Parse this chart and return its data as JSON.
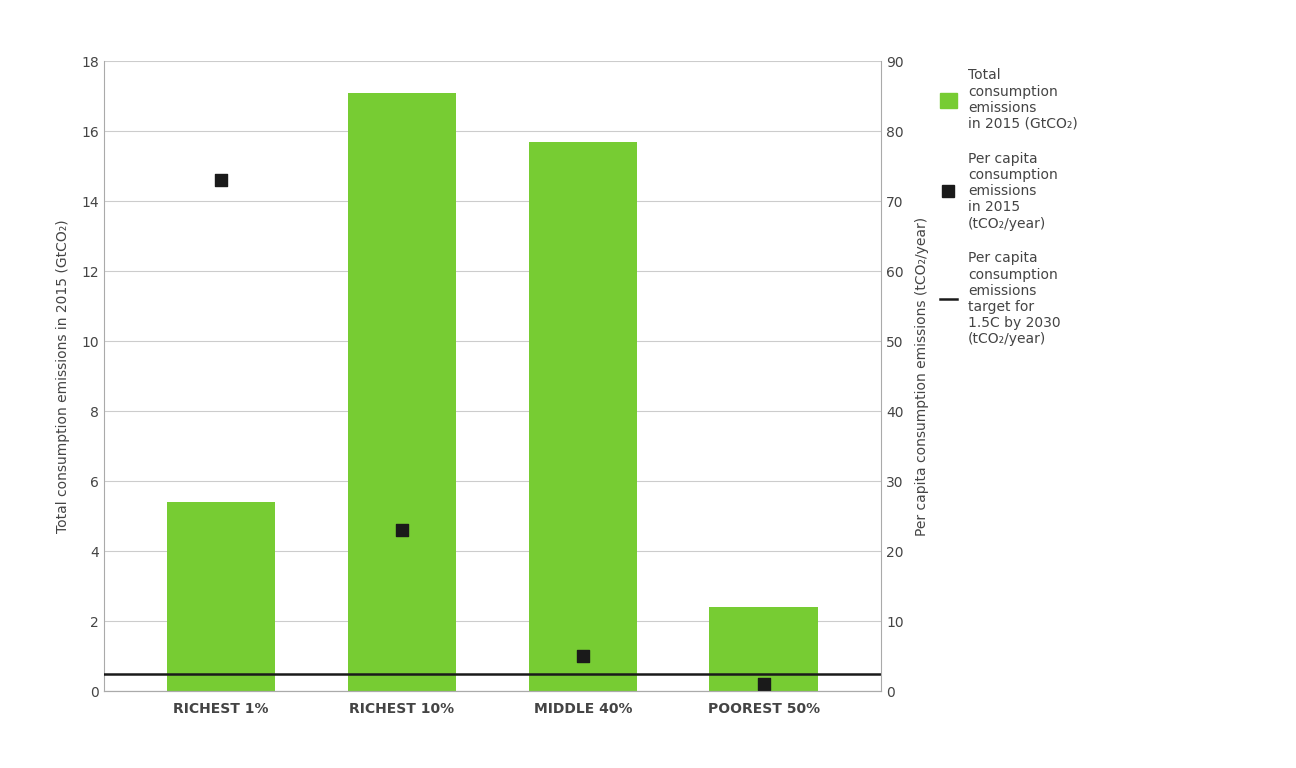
{
  "categories": [
    "RICHEST 1%",
    "RICHEST 10%",
    "MIDDLE 40%",
    "POOREST 50%"
  ],
  "bar_values": [
    5.4,
    17.1,
    15.7,
    2.4
  ],
  "bar_color": "#77cc33",
  "per_capita_tco2": [
    73.0,
    23.0,
    5.0,
    1.0
  ],
  "target_tco2": 2.5,
  "left_ylim": [
    0,
    18
  ],
  "right_ylim": [
    0,
    90
  ],
  "left_yticks": [
    0,
    2,
    4,
    6,
    8,
    10,
    12,
    14,
    16,
    18
  ],
  "right_yticks": [
    0,
    10,
    20,
    30,
    40,
    50,
    60,
    70,
    80,
    90
  ],
  "left_ylabel": "Total consumption emissions in 2015 (GtCO₂)",
  "right_ylabel": "Per capita consumption emissions (tCO₂/year)",
  "scale_factor": 5,
  "marker_color": "#1a1a1a",
  "line_color": "#1a1a1a",
  "grid_color": "#cccccc",
  "background_color": "#ffffff",
  "legend_bar_label": "Total\nconsumption\nemissions\nin 2015 (GtCO₂)",
  "legend_marker_label": "Per capita\nconsumption\nemissions\nin 2015\n(tCO₂/year)",
  "legend_line_label": "Per capita\nconsumption\nemissions\ntarget for\n1.5C by 2030\n(tCO₂/year)",
  "bar_width": 0.6,
  "figsize": [
    12.96,
    7.68
  ],
  "dpi": 100,
  "label_fontsize": 10,
  "tick_fontsize": 10,
  "legend_fontsize": 10
}
